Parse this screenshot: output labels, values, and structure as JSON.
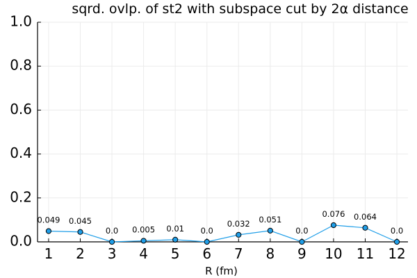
{
  "chart_data": {
    "type": "line",
    "title": "sqrd. ovlp. of st2 with subspace cut by 2α distance",
    "xlabel": "R (fm)",
    "ylabel": "",
    "x": [
      1,
      2,
      3,
      4,
      5,
      6,
      7,
      8,
      9,
      10,
      11,
      12
    ],
    "xticks": [
      "1",
      "2",
      "3",
      "4",
      "5",
      "6",
      "7",
      "8",
      "9",
      "10",
      "11",
      "12"
    ],
    "ylim": [
      0,
      1
    ],
    "yticks": [
      "0.0",
      "0.2",
      "0.4",
      "0.6",
      "0.8",
      "1.0"
    ],
    "grid": true,
    "series": [
      {
        "values": [
          0.049,
          0.045,
          0.0,
          0.005,
          0.01,
          0.0,
          0.032,
          0.051,
          0.0,
          0.076,
          0.064,
          0.0
        ],
        "labels": [
          "0.049",
          "0.045",
          "0.0",
          "0.005",
          "0.01",
          "0.0",
          "0.032",
          "0.051",
          "0.0",
          "0.076",
          "0.064",
          "0.0"
        ],
        "color": "#1f9ee8"
      }
    ]
  }
}
